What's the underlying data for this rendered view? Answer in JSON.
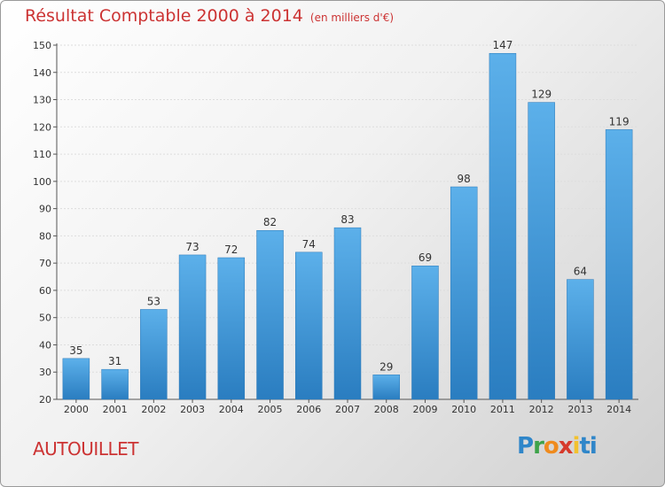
{
  "title": "Résultat Comptable 2000 à 2014",
  "unit": "(en milliers d'€)",
  "city": "AUTOUILLET",
  "logo": {
    "letters": [
      "P",
      "r",
      "o",
      "x",
      "i",
      "ti"
    ],
    "colors": [
      "#2f86c9",
      "#3ea34a",
      "#ef8b1e",
      "#d63a2b",
      "#f2c12e",
      "#2f86c9"
    ]
  },
  "colors": {
    "bar_top": "#5cb0ea",
    "bar_bottom": "#2a7dc0",
    "title": "#cc3333"
  },
  "chart_data": {
    "type": "bar",
    "title": "Résultat Comptable 2000 à 2014",
    "categories": [
      "2000",
      "2001",
      "2002",
      "2003",
      "2004",
      "2005",
      "2006",
      "2007",
      "2008",
      "2009",
      "2010",
      "2011",
      "2012",
      "2013",
      "2014"
    ],
    "values": [
      35,
      31,
      53,
      73,
      72,
      82,
      74,
      83,
      29,
      69,
      98,
      147,
      129,
      64,
      119
    ],
    "ylim": [
      20,
      150
    ],
    "yticks": [
      20,
      30,
      40,
      50,
      60,
      70,
      80,
      90,
      100,
      110,
      120,
      130,
      140,
      150
    ],
    "grid": true,
    "legend": "none"
  }
}
